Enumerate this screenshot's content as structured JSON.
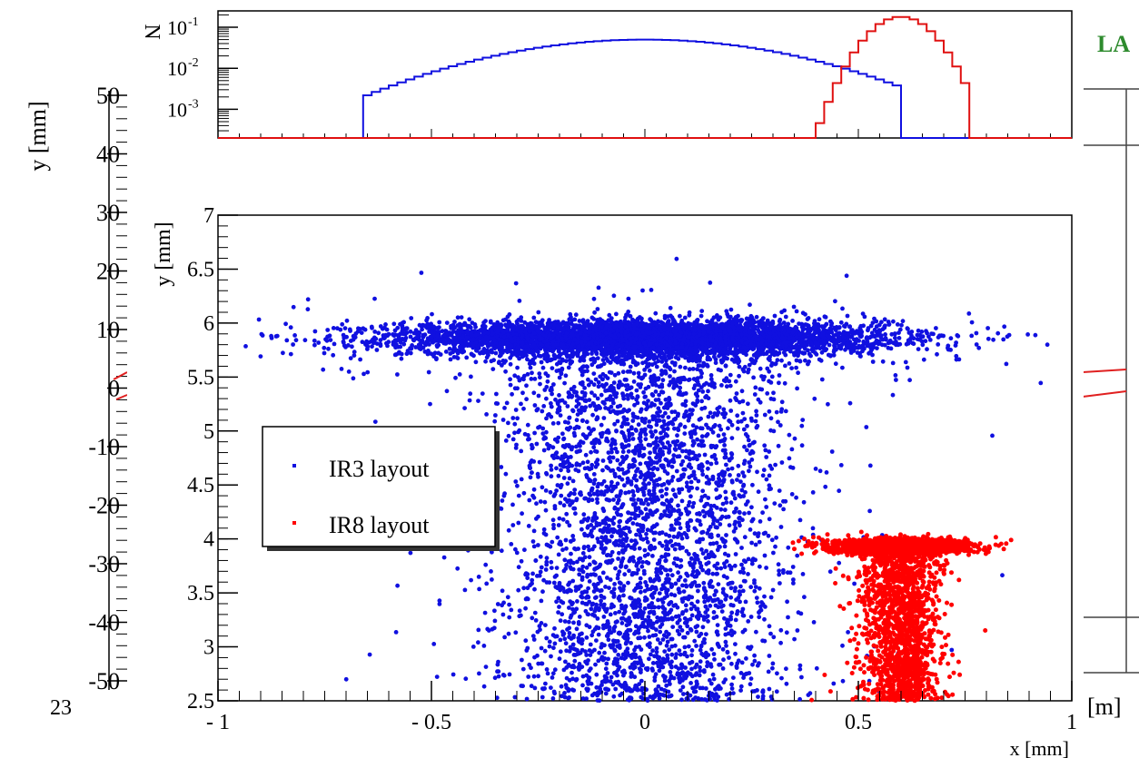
{
  "background_figure": {
    "ylabel": "y [mm]",
    "yticks": [
      "50",
      "40",
      "30",
      "20",
      "10",
      "0",
      "-10",
      "-20",
      "-30",
      "-40",
      "-50"
    ],
    "corner_text": "23",
    "xunit": "[m]",
    "partial_label": "LA",
    "label_color": "#2e8b2e",
    "mark_color": "#e02020"
  },
  "chart_data": [
    {
      "type": "histogram",
      "ylabel": "N",
      "yscale": "log",
      "xlim": [
        -1,
        1
      ],
      "ylim": [
        0.0002,
        0.25
      ],
      "yticks": [
        {
          "value": 0.1,
          "label": "10",
          "exp": "-1"
        },
        {
          "value": 0.01,
          "label": "10",
          "exp": "-2"
        },
        {
          "value": 0.001,
          "label": "10",
          "exp": "-3"
        }
      ],
      "series": [
        {
          "name": "IR3 layout",
          "color": "#1010e0",
          "shape": "gaussian",
          "mean": 0.0,
          "sigma": 0.26,
          "peak": 0.05,
          "range": [
            -0.65,
            0.6
          ]
        },
        {
          "name": "IR8 layout",
          "color": "#e01010",
          "shape": "gaussian",
          "mean": 0.6,
          "sigma": 0.055,
          "peak": 0.18,
          "range": [
            0.41,
            0.75
          ]
        }
      ]
    },
    {
      "type": "scatter",
      "xlabel": "x [mm]",
      "ylabel": "y [mm]",
      "xlim": [
        -1,
        1
      ],
      "ylim": [
        2.5,
        7
      ],
      "xticks": [
        {
          "value": -1,
          "label": "- 1"
        },
        {
          "value": -0.5,
          "label": "- 0.5"
        },
        {
          "value": 0,
          "label": "0"
        },
        {
          "value": 0.5,
          "label": "0.5"
        },
        {
          "value": 1,
          "label": "1"
        }
      ],
      "yticks": [
        {
          "value": 2.5,
          "label": "2.5"
        },
        {
          "value": 3,
          "label": "3"
        },
        {
          "value": 3.5,
          "label": "3.5"
        },
        {
          "value": 4,
          "label": "4"
        },
        {
          "value": 4.5,
          "label": "4.5"
        },
        {
          "value": 5,
          "label": "5"
        },
        {
          "value": 5.5,
          "label": "5.5"
        },
        {
          "value": 6,
          "label": "6"
        },
        {
          "value": 6.5,
          "label": "6.5"
        },
        {
          "value": 7,
          "label": "7"
        }
      ],
      "legend": {
        "placement": "left, middle"
      },
      "series": [
        {
          "name": "IR3 layout",
          "color": "#1010e0",
          "core": {
            "x_mean": 0.0,
            "x_sigma": 0.28,
            "y_mean": 5.86,
            "y_sigma": 0.08
          },
          "tail": {
            "x_mean": 0.0,
            "x_sigma": 0.17,
            "y_min": 2.5,
            "y_max": 5.7
          }
        },
        {
          "name": "IR8 layout",
          "color": "#ff0000",
          "core": {
            "x_mean": 0.6,
            "x_sigma": 0.08,
            "y_mean": 3.93,
            "y_sigma": 0.035
          },
          "tail": {
            "x_mean": 0.6,
            "x_sigma": 0.045,
            "y_min": 2.5,
            "y_max": 3.85
          }
        }
      ]
    }
  ]
}
